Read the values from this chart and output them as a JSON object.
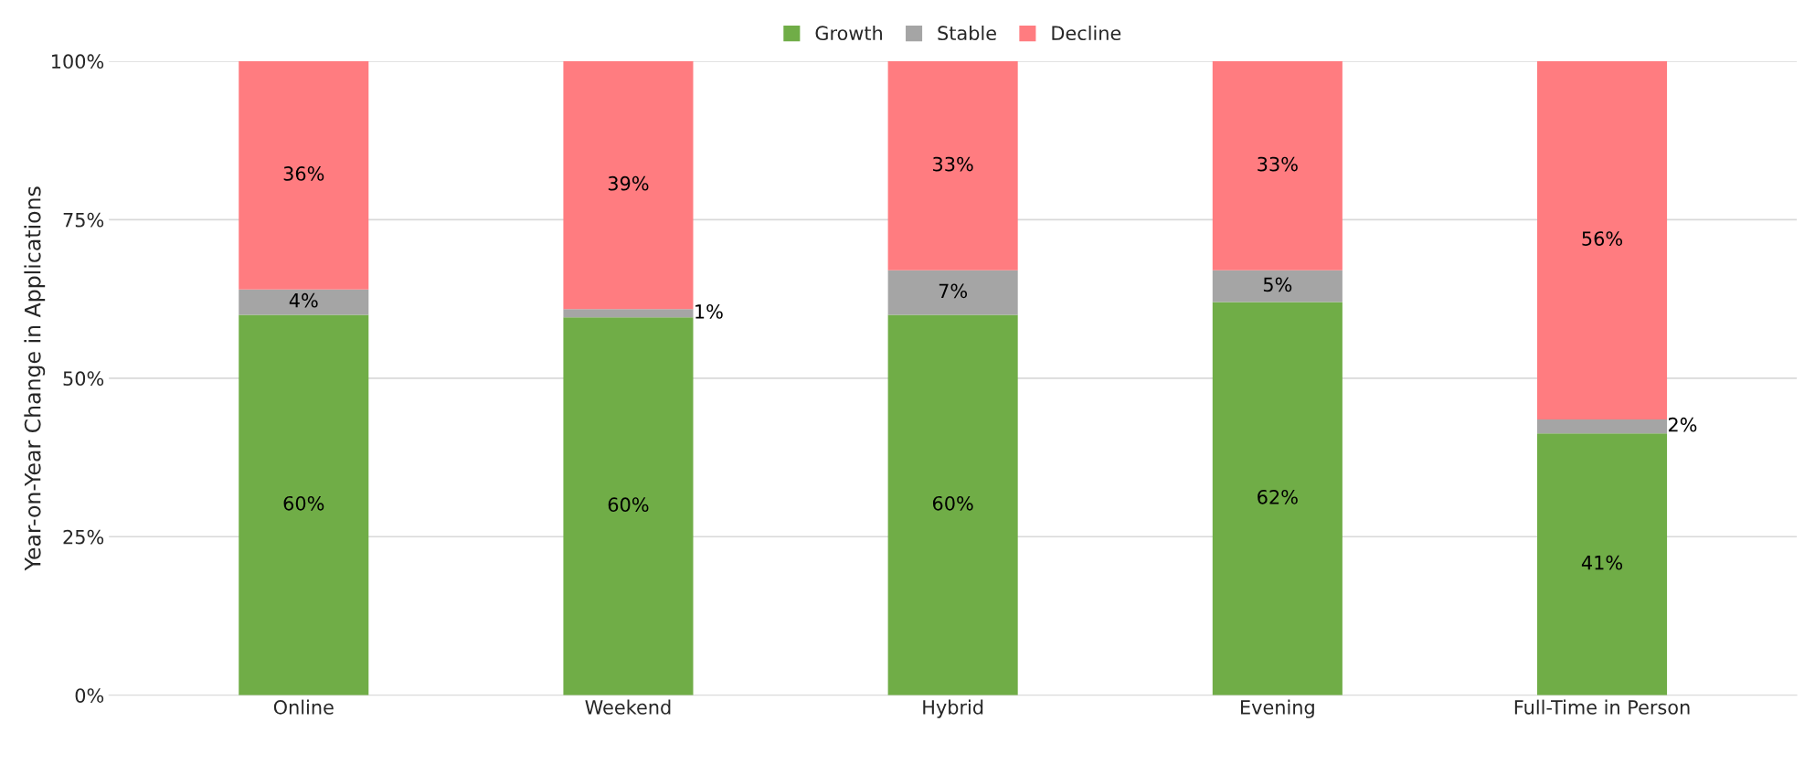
{
  "chart_data": {
    "type": "bar",
    "stacked": true,
    "ylabel": "Year-on-Year Change in Applications",
    "categories": [
      "Online",
      "Weekend",
      "Hybrid",
      "Evening",
      "Full-Time in Person"
    ],
    "series": [
      {
        "name": "Growth",
        "color": "#70ad47",
        "values": [
          60,
          59.6,
          60,
          62,
          41.3
        ],
        "value_labels": [
          "60%",
          "60%",
          "60%",
          "62%",
          "41%"
        ]
      },
      {
        "name": "Stable",
        "color": "#a5a5a5",
        "values": [
          4,
          1.3,
          7,
          5,
          2.2
        ],
        "value_labels": [
          "4%",
          "1%",
          "7%",
          "5%",
          "2%"
        ]
      },
      {
        "name": "Decline",
        "color": "#ff7c80",
        "values": [
          36,
          39.1,
          33,
          33,
          56.5
        ],
        "value_labels": [
          "36%",
          "39%",
          "33%",
          "33%",
          "56%"
        ]
      }
    ],
    "ylim": [
      0,
      100
    ],
    "yticks": [
      {
        "value": 0,
        "label": "0%"
      },
      {
        "value": 25,
        "label": "25%"
      },
      {
        "value": 50,
        "label": "50%"
      },
      {
        "value": 75,
        "label": "75%"
      },
      {
        "value": 100,
        "label": "100%"
      }
    ],
    "grid": "y",
    "legend": "top"
  }
}
